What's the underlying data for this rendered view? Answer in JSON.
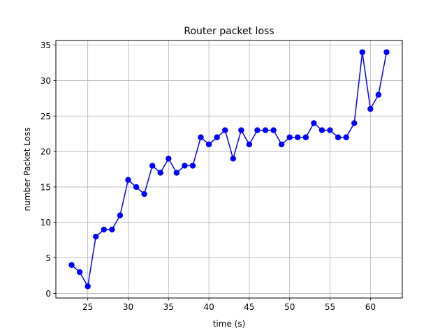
{
  "chart_data": {
    "type": "line",
    "title": "Router packet loss",
    "xlabel": "time (s)",
    "ylabel": "number Packet Loss",
    "xlim": [
      21.05,
      63.95
    ],
    "ylim": [
      -0.65,
      35.65
    ],
    "xticks": [
      25,
      30,
      35,
      40,
      45,
      50,
      55,
      60
    ],
    "yticks": [
      0,
      5,
      10,
      15,
      20,
      25,
      30,
      35
    ],
    "grid": true,
    "line_color": "#0000ff",
    "marker_color": "#0000ff",
    "series": [
      {
        "x": [
          23,
          24,
          25,
          26,
          27,
          28,
          29,
          30,
          31,
          32,
          33,
          34,
          35,
          36,
          37,
          38,
          39,
          40,
          41,
          42,
          43,
          44,
          45,
          46,
          47,
          48,
          49,
          50,
          51,
          52,
          53,
          54,
          55,
          56,
          57,
          58,
          59,
          60,
          61,
          62
        ],
        "y": [
          4,
          3,
          1,
          8,
          9,
          9,
          11,
          16,
          15,
          14,
          18,
          17,
          19,
          17,
          18,
          18,
          22,
          21,
          22,
          23,
          19,
          23,
          21,
          23,
          23,
          23,
          21,
          22,
          22,
          22,
          24,
          23,
          23,
          22,
          22,
          24,
          34,
          26,
          28,
          34
        ]
      }
    ]
  }
}
